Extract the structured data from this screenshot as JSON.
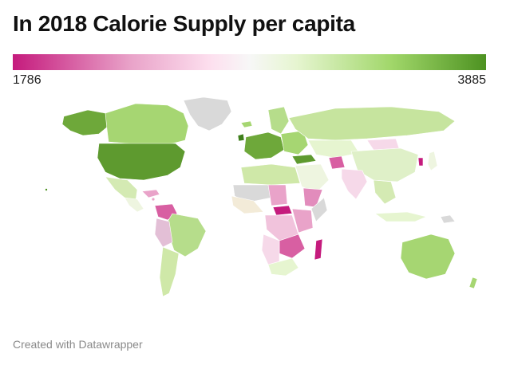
{
  "title": "In 2018 Calorie Supply per capita",
  "legend": {
    "min_label": "1786",
    "max_label": "3885",
    "min_value": 1786,
    "max_value": 3885
  },
  "credit": "Created with Datawrapper",
  "colors": {
    "low": "#c51b7d",
    "mid": "#f7f7f7",
    "high": "#4d9221",
    "no_data": "#d9d9d9"
  }
}
